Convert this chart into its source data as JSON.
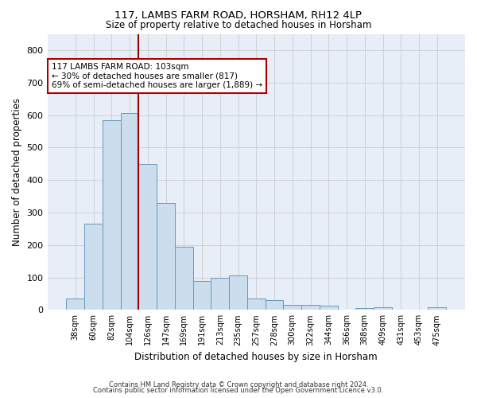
{
  "title1": "117, LAMBS FARM ROAD, HORSHAM, RH12 4LP",
  "title2": "Size of property relative to detached houses in Horsham",
  "xlabel": "Distribution of detached houses by size in Horsham",
  "ylabel": "Number of detached properties",
  "categories": [
    "38sqm",
    "60sqm",
    "82sqm",
    "104sqm",
    "126sqm",
    "147sqm",
    "169sqm",
    "191sqm",
    "213sqm",
    "235sqm",
    "257sqm",
    "278sqm",
    "300sqm",
    "322sqm",
    "344sqm",
    "366sqm",
    "388sqm",
    "409sqm",
    "431sqm",
    "453sqm",
    "475sqm"
  ],
  "values": [
    35,
    265,
    585,
    605,
    450,
    330,
    195,
    90,
    100,
    105,
    35,
    30,
    15,
    15,
    12,
    0,
    5,
    7,
    0,
    0,
    7
  ],
  "bar_color": "#ccdded",
  "bar_edge_color": "#6699bb",
  "grid_color": "#cccccc",
  "background_color": "#e8eef8",
  "vline_color": "#990000",
  "annotation_text": "117 LAMBS FARM ROAD: 103sqm\n← 30% of detached houses are smaller (817)\n69% of semi-detached houses are larger (1,889) →",
  "annotation_box_color": "#aa0000",
  "footer1": "Contains HM Land Registry data © Crown copyright and database right 2024.",
  "footer2": "Contains public sector information licensed under the Open Government Licence v3.0.",
  "ylim": [
    0,
    850
  ],
  "yticks": [
    0,
    100,
    200,
    300,
    400,
    500,
    600,
    700,
    800
  ]
}
